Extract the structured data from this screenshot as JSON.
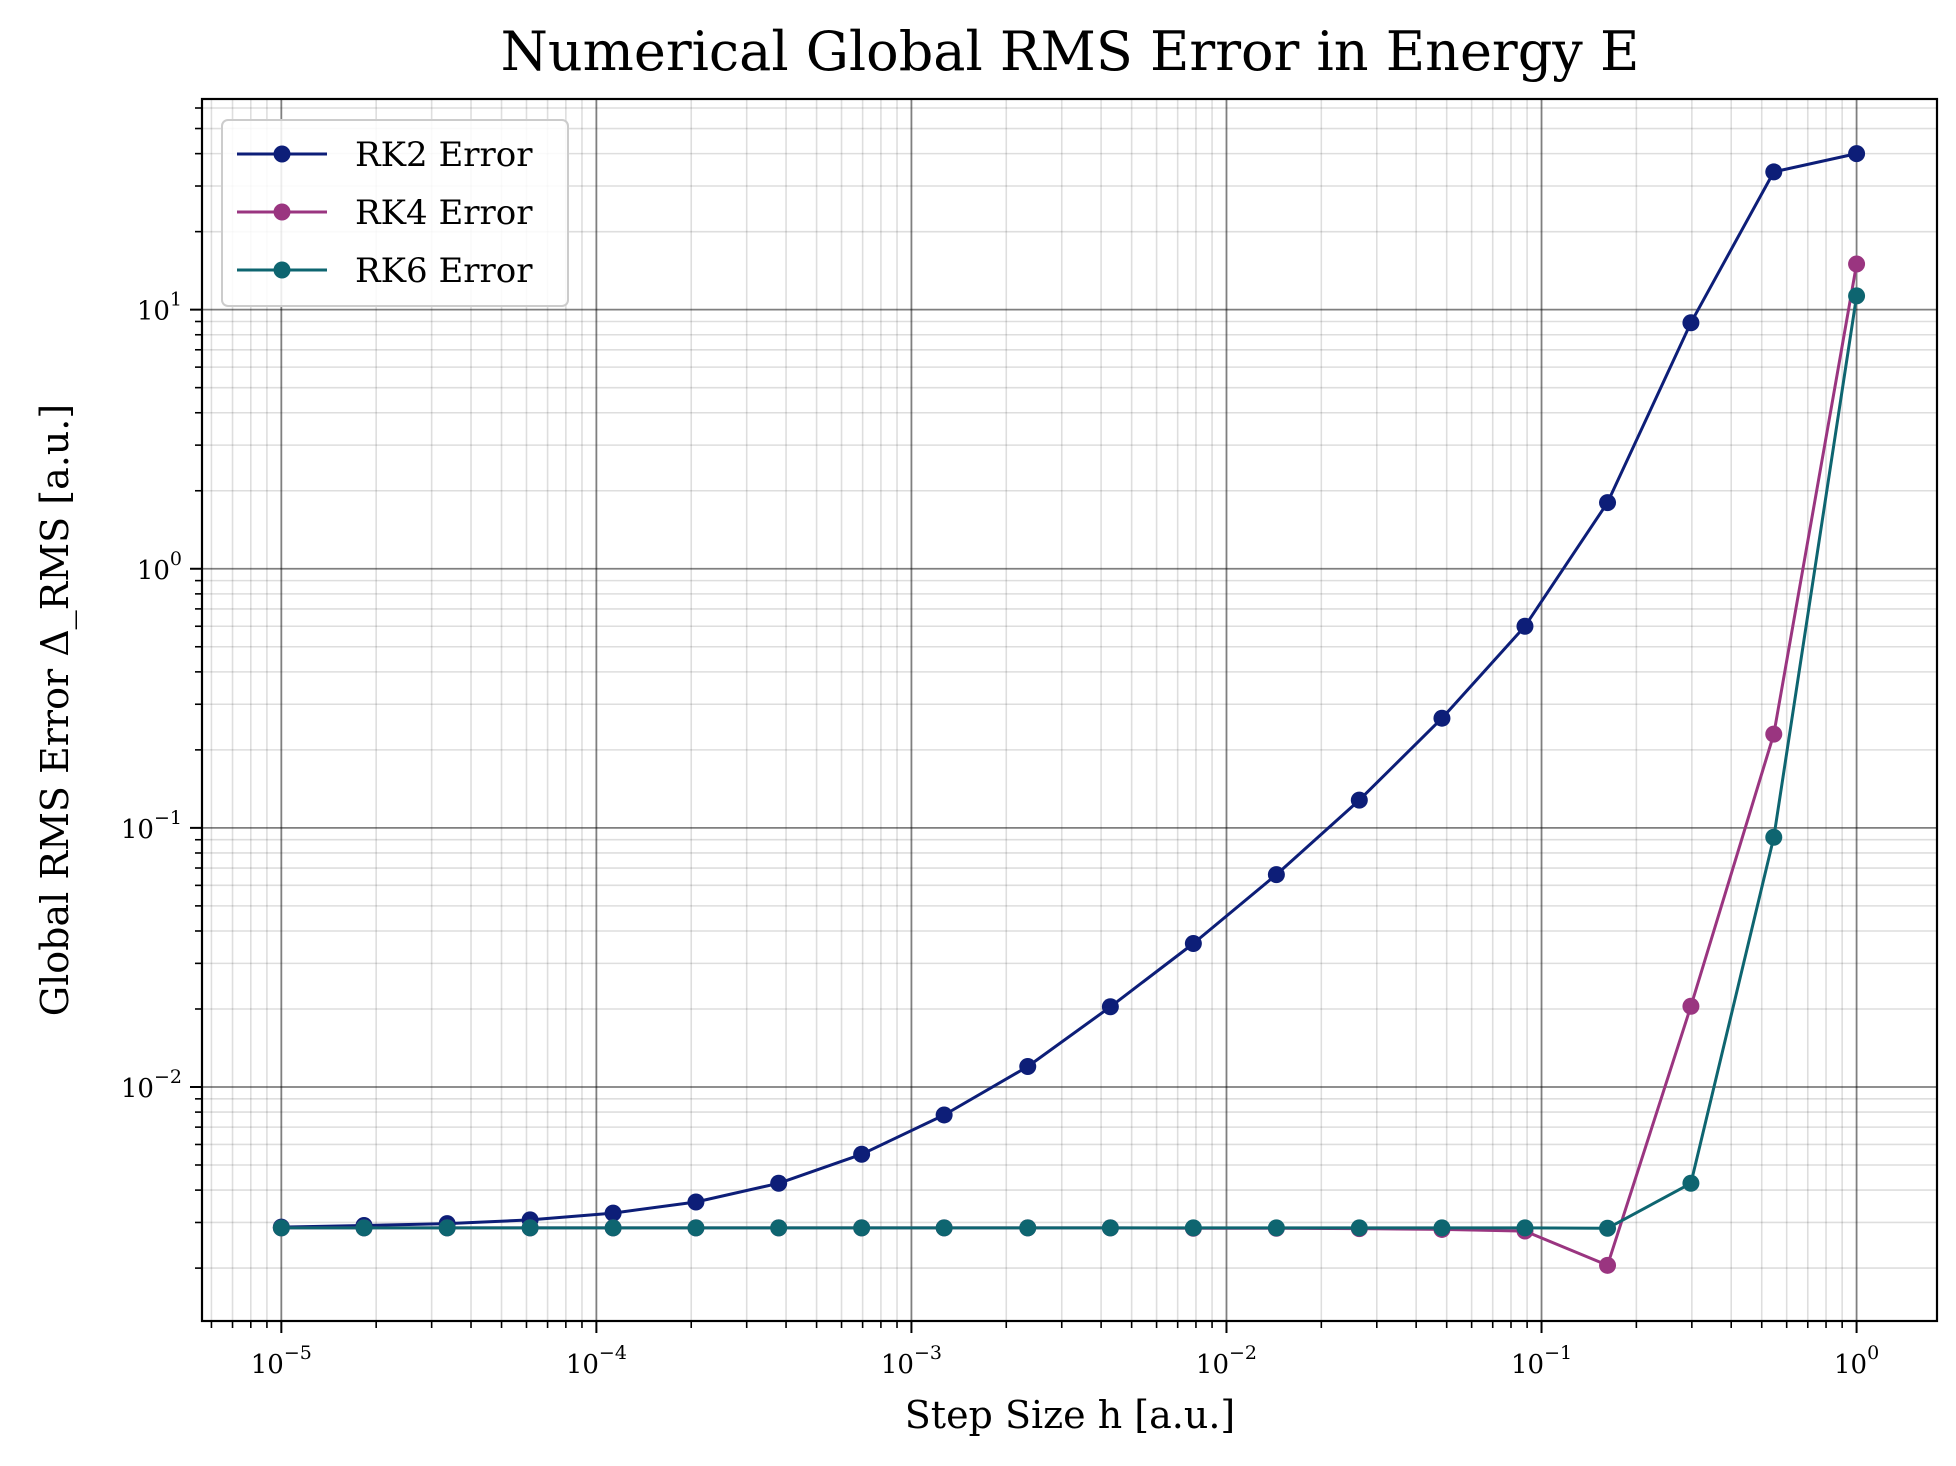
{
  "chart_data": {
    "type": "line",
    "title": "Numerical Global RMS Error in Energy E",
    "xlabel": "Step Size h [a.u.]",
    "ylabel": "Global RMS Error Δ_RMS [a.u.]",
    "xscale": "log",
    "yscale": "log",
    "xlim": [
      5.6e-06,
      1.8
    ],
    "ylim": [
      0.00125,
      65
    ],
    "grid": "major and minor",
    "legend_position": "top-left",
    "x_ticks": [
      {
        "base": "10",
        "exp": "−5"
      },
      {
        "base": "10",
        "exp": "−4"
      },
      {
        "base": "10",
        "exp": "−3"
      },
      {
        "base": "10",
        "exp": "−2"
      },
      {
        "base": "10",
        "exp": "−1"
      },
      {
        "base": "10",
        "exp": "0"
      }
    ],
    "y_ticks": [
      {
        "base": "10",
        "exp": "−2"
      },
      {
        "base": "10",
        "exp": "−1"
      },
      {
        "base": "10",
        "exp": "0"
      },
      {
        "base": "10",
        "exp": "1"
      }
    ],
    "x": [
      1e-05,
      1.83e-05,
      3.36e-05,
      6.16e-05,
      0.000113,
      0.000207,
      0.000379,
      0.000695,
      0.00127,
      0.00234,
      0.00428,
      0.00785,
      0.0144,
      0.0264,
      0.0483,
      0.0886,
      0.162,
      0.298,
      0.546,
      1.0
    ],
    "series": [
      {
        "name": "RK2 Error",
        "color": "#0d1e78",
        "values": [
          0.00288,
          0.00292,
          0.00297,
          0.00307,
          0.00326,
          0.0036,
          0.00425,
          0.0055,
          0.0078,
          0.012,
          0.0204,
          0.0358,
          0.066,
          0.128,
          0.265,
          0.6,
          1.8,
          8.9,
          34,
          40
        ]
      },
      {
        "name": "RK4 Error",
        "color": "#9a3580",
        "values": [
          0.00286,
          0.00286,
          0.00286,
          0.00286,
          0.00286,
          0.00286,
          0.00286,
          0.00286,
          0.00286,
          0.00286,
          0.00286,
          0.00285,
          0.00285,
          0.00284,
          0.00282,
          0.00278,
          0.00205,
          0.0205,
          0.23,
          15
        ]
      },
      {
        "name": "RK6 Error",
        "color": "#0e6570",
        "values": [
          0.00286,
          0.00286,
          0.00286,
          0.00286,
          0.00286,
          0.00286,
          0.00286,
          0.00286,
          0.00286,
          0.00286,
          0.00286,
          0.00286,
          0.00286,
          0.00286,
          0.00286,
          0.00286,
          0.00285,
          0.00425,
          0.092,
          11.3
        ]
      }
    ]
  }
}
